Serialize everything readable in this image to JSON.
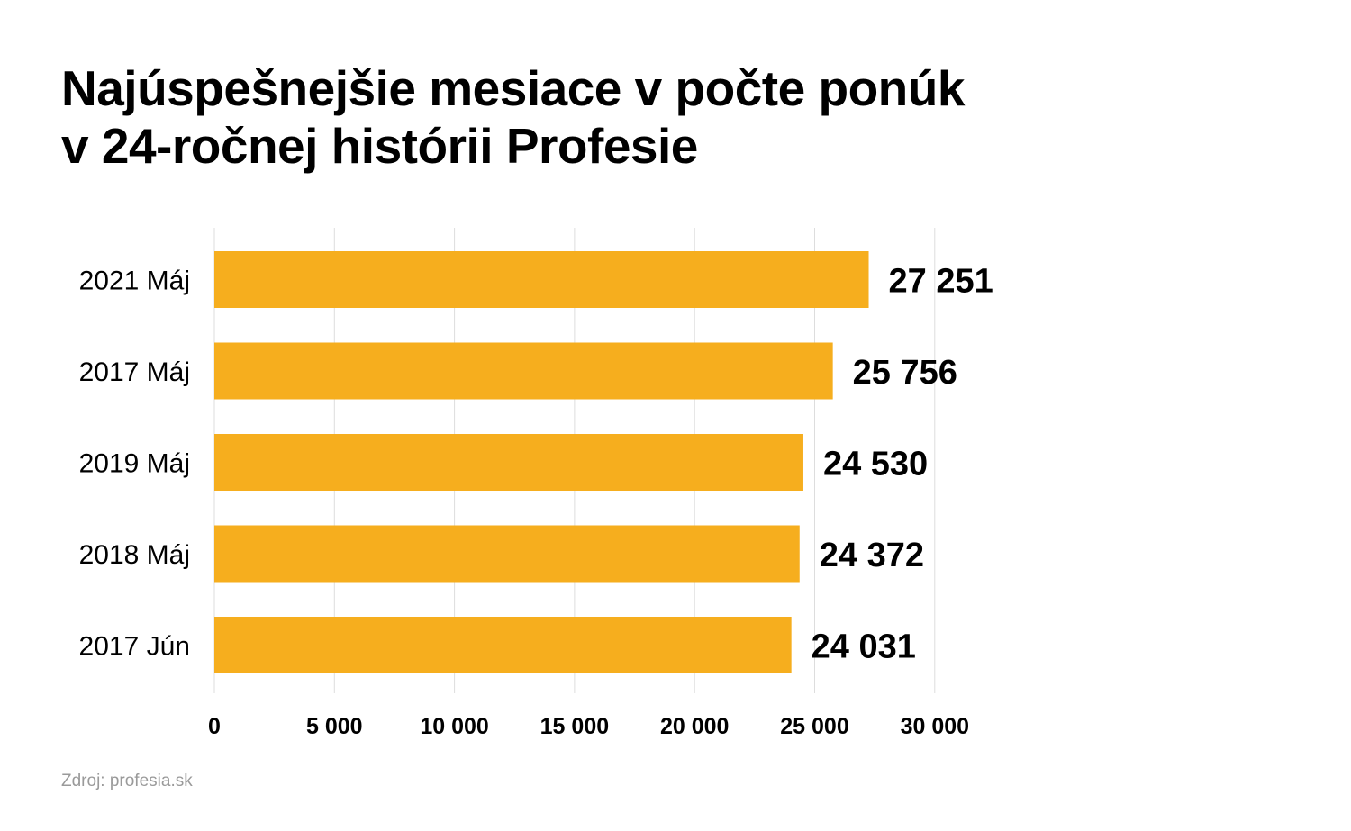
{
  "title_lines": [
    "Najúspešnejšie mesiace v počte ponúk",
    "v 24-ročnej histórii Profesie"
  ],
  "source": "Zdroj: profesia.sk",
  "colors": {
    "bar": "#F6AE1E",
    "grid": "#dddddd",
    "text": "#000000",
    "source": "#9a9a9a"
  },
  "chart_data": {
    "type": "bar",
    "orientation": "horizontal",
    "categories": [
      "2021 Máj",
      "2017 Máj",
      "2019 Máj",
      "2018 Máj",
      "2017 Jún"
    ],
    "values": [
      27251,
      25756,
      24530,
      24372,
      24031
    ],
    "value_labels": [
      "27 251",
      "25 756",
      "24 530",
      "24 372",
      "24 031"
    ],
    "xlim": [
      0,
      32500
    ],
    "x_ticks": [
      0,
      5000,
      10000,
      15000,
      20000,
      25000,
      30000
    ],
    "x_tick_labels": [
      "0",
      "5 000",
      "10 000",
      "15 000",
      "20 000",
      "25 000",
      "30 000"
    ],
    "grid": true
  }
}
